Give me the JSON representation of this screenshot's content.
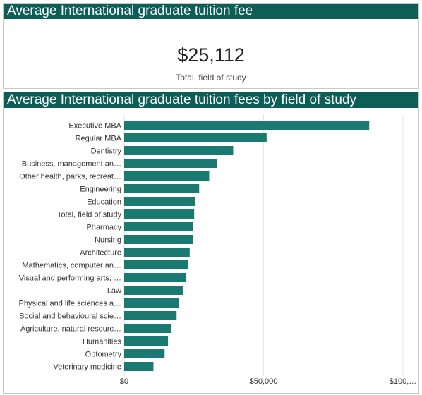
{
  "kpi": {
    "header": "Average International graduate tuition fee",
    "value": "$25,112",
    "caption": "Total, field of study"
  },
  "chart_header": "Average International graduate tuition fees by field of study",
  "chart_data": {
    "type": "bar",
    "orientation": "horizontal",
    "title": "Average International graduate tuition fees by field of study",
    "categories": [
      "Executive MBA",
      "Regular MBA",
      "Dentistry",
      "Business, management an…",
      "Other health, parks, recreat…",
      "Engineering",
      "Education",
      "Total, field of study",
      "Pharmacy",
      "Nursing",
      "Architecture",
      "Mathematics, computer an…",
      "Visual and performing arts, …",
      "Law",
      "Physical and life sciences a…",
      "Social and behavioural scie…",
      "Agriculture, natural resourc…",
      "Humanities",
      "Optometry",
      "Veterinary medicine"
    ],
    "values": [
      87900,
      51100,
      39100,
      33300,
      30500,
      26900,
      25500,
      25112,
      24800,
      24700,
      23500,
      23000,
      22300,
      21000,
      19500,
      18800,
      16800,
      15700,
      14500,
      10500
    ],
    "xlim": [
      0,
      100000
    ],
    "xticks": [
      "$0",
      "$50,000",
      "$100,…"
    ],
    "bar_color": "#1a7a72",
    "grid": true
  }
}
